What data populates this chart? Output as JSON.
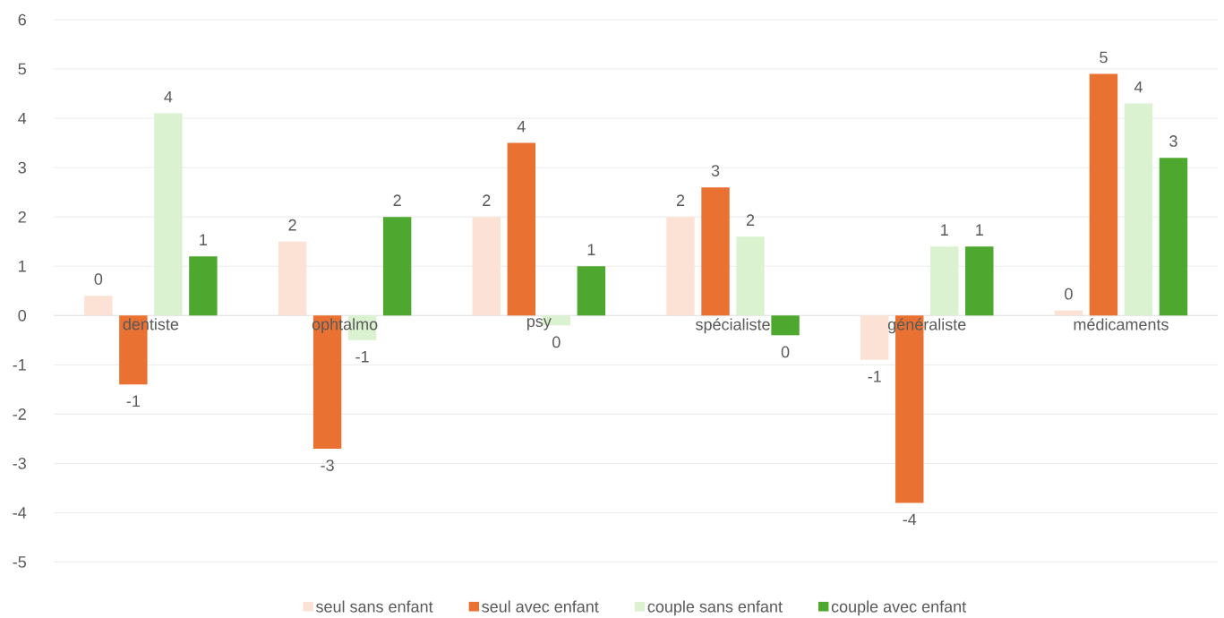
{
  "chart_data": {
    "type": "bar",
    "categories": [
      "dentiste",
      "ophtalmo",
      "psy",
      "spécialiste",
      "généraliste",
      "médicaments"
    ],
    "series": [
      {
        "name": "seul sans enfant",
        "color": "#fbe2d5",
        "values": [
          0.4,
          1.5,
          2.0,
          2.0,
          -0.9,
          0.1
        ],
        "value_labels": [
          "0",
          "2",
          "2",
          "2",
          "-1",
          "0"
        ]
      },
      {
        "name": "seul avec enfant",
        "color": "#e97132",
        "values": [
          -1.4,
          -2.7,
          3.5,
          2.6,
          -3.8,
          4.9
        ],
        "value_labels": [
          "-1",
          "-3",
          "4",
          "3",
          "-4",
          "5"
        ]
      },
      {
        "name": "couple sans enfant",
        "color": "#daf2d0",
        "values": [
          4.1,
          -0.5,
          -0.2,
          1.6,
          1.4,
          4.3
        ],
        "value_labels": [
          "4",
          "-1",
          "0",
          "2",
          "1",
          "4"
        ]
      },
      {
        "name": "couple avec enfant",
        "color": "#4ea72e",
        "values": [
          1.2,
          2.0,
          1.0,
          -0.4,
          1.4,
          3.2
        ],
        "value_labels": [
          "1",
          "2",
          "1",
          "0",
          "1",
          "3"
        ]
      }
    ],
    "ylim": [
      -5,
      6
    ],
    "yticks": [
      -5,
      -4,
      -3,
      -2,
      -1,
      0,
      1,
      2,
      3,
      4,
      5,
      6
    ],
    "grid": "y",
    "legend": "bottom"
  }
}
